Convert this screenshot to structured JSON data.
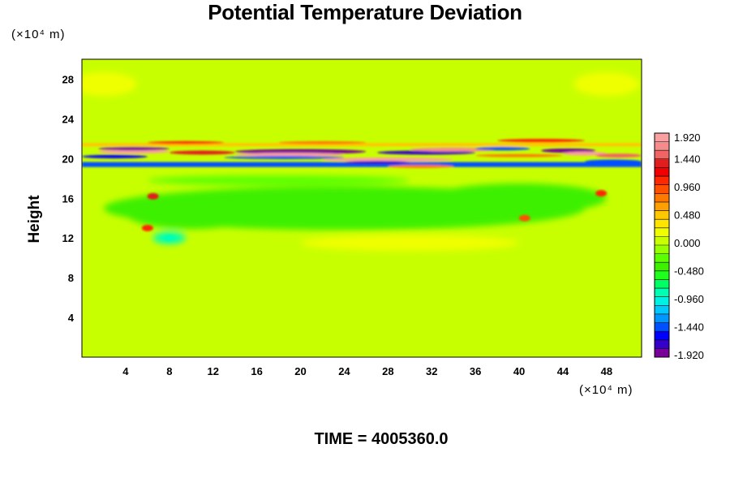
{
  "chart_data": {
    "type": "heatmap",
    "title": "Potential Temperature Deviation",
    "ylabel": "Height",
    "x_unit": "(×10⁴ m)",
    "y_unit": "(×10⁴ m)",
    "footer": "TIME = 4005360.0",
    "xlim": [
      0,
      51.2
    ],
    "ylim": [
      0,
      30
    ],
    "xticks": [
      4,
      8,
      12,
      16,
      20,
      24,
      28,
      32,
      36,
      40,
      44,
      48
    ],
    "yticks": [
      4,
      8,
      12,
      16,
      20,
      24,
      28
    ],
    "colorbar": {
      "min": -1.92,
      "max": 1.92,
      "labels": [
        "1.920",
        "1.440",
        "0.960",
        "0.480",
        "0.000",
        "-0.480",
        "-0.960",
        "-1.440",
        "-1.920"
      ],
      "colors": [
        "#7a0099",
        "#3600c8",
        "#0000ff",
        "#0050ff",
        "#0096ff",
        "#00c8ff",
        "#00f0e6",
        "#00ffb4",
        "#00ff64",
        "#1eff1e",
        "#3cf000",
        "#5aff00",
        "#96ff00",
        "#c8ff00",
        "#f0ff00",
        "#ffe600",
        "#ffc800",
        "#ffa000",
        "#ff7800",
        "#ff5000",
        "#ff2800",
        "#f00000",
        "#e11e1e",
        "#f06464",
        "#f58c8c",
        "#faa0a0"
      ]
    },
    "features": [
      {
        "x": 25,
        "y": 20.5,
        "value": 1.9,
        "desc": "banded dipole layer"
      },
      {
        "x": 6.5,
        "y": 16.2,
        "value": 1.4
      },
      {
        "x": 6.0,
        "y": 13.0,
        "value": 1.2
      },
      {
        "x": 40.5,
        "y": 14.0,
        "value": 1.0
      },
      {
        "x": 47.5,
        "y": 16.5,
        "value": 1.1
      },
      {
        "x": 8.0,
        "y": 12.0,
        "value": -0.9
      }
    ]
  }
}
